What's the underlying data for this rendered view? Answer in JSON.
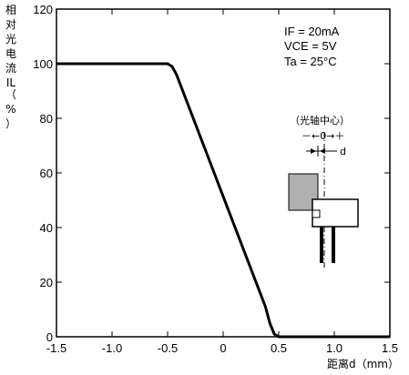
{
  "chart_data": {
    "type": "line",
    "title": "",
    "ylabel": "相对光电流IL（%）",
    "ylabel_chars": [
      "相",
      "对",
      "光",
      "电",
      "流",
      "IL",
      "（",
      "%",
      "）"
    ],
    "xlabel": "距离d（mm）",
    "xlim": [
      -1.5,
      1.5
    ],
    "ylim": [
      0,
      120
    ],
    "x_ticks": [
      -1.5,
      -1.0,
      -0.5,
      0,
      0.5,
      1.0,
      1.5
    ],
    "x_tick_labels": [
      "-1.5",
      "-1.0",
      "-0.5",
      "0",
      "0.5",
      "1.0",
      "1.5"
    ],
    "y_ticks": [
      0,
      20,
      40,
      60,
      80,
      100,
      120
    ],
    "y_tick_labels": [
      "0",
      "20",
      "40",
      "60",
      "80",
      "100",
      "120"
    ],
    "grid": false,
    "series": [
      {
        "x": [
          -1.5,
          -0.5,
          -0.46,
          -0.42,
          0.38,
          0.42,
          0.46,
          0.5,
          1.5
        ],
        "y": [
          100,
          100,
          99,
          96,
          11,
          5,
          1,
          0,
          0
        ]
      }
    ],
    "conditions": {
      "if": "IF = 20mA",
      "vce": "VCE = 5V",
      "ta": "Ta = 25°C"
    },
    "inset": {
      "title": "（光轴中心）",
      "axis": "－←0→＋",
      "d_label": "d"
    }
  }
}
